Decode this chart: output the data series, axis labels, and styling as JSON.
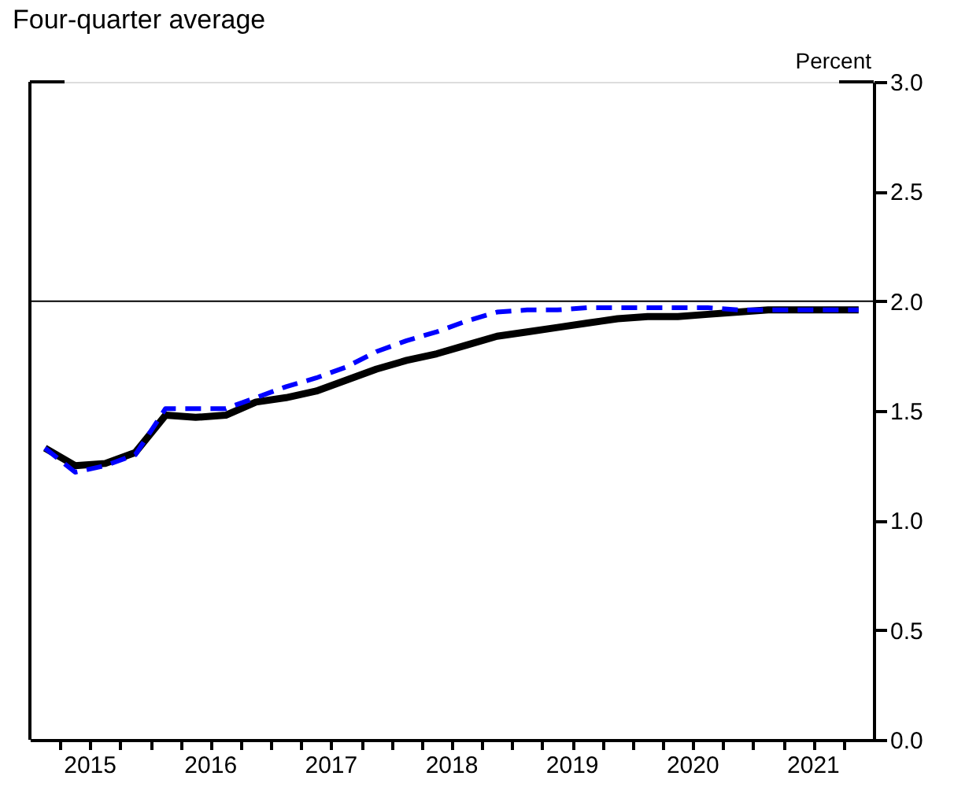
{
  "chart_data": {
    "type": "line",
    "subtitle": "Four-quarter average",
    "ylabel": "Percent",
    "x": [
      2015.125,
      2015.375,
      2015.625,
      2015.875,
      2016.125,
      2016.375,
      2016.625,
      2016.875,
      2017.125,
      2017.375,
      2017.625,
      2017.875,
      2018.125,
      2018.375,
      2018.625,
      2018.875,
      2019.125,
      2019.375,
      2019.625,
      2019.875,
      2020.125,
      2020.375,
      2020.625,
      2020.875,
      2021.125,
      2021.375,
      2021.625,
      2021.875
    ],
    "series": [
      {
        "color": "#000000",
        "line_style": "solid",
        "values": [
          1.33,
          1.25,
          1.26,
          1.31,
          1.48,
          1.47,
          1.48,
          1.54,
          1.56,
          1.59,
          1.64,
          1.69,
          1.73,
          1.76,
          1.8,
          1.84,
          1.86,
          1.88,
          1.9,
          1.92,
          1.93,
          1.93,
          1.94,
          1.95,
          1.96,
          1.96,
          1.96,
          1.96
        ]
      },
      {
        "color": "#0000ff",
        "line_style": "dashed",
        "values": [
          1.33,
          1.22,
          1.25,
          1.3,
          1.51,
          1.51,
          1.51,
          1.56,
          1.61,
          1.65,
          1.7,
          1.77,
          1.82,
          1.86,
          1.91,
          1.95,
          1.96,
          1.96,
          1.97,
          1.97,
          1.97,
          1.97,
          1.97,
          1.96,
          1.96,
          1.96,
          1.96,
          1.96
        ]
      }
    ],
    "xlim": [
      2015,
      2022
    ],
    "xticks": [
      {
        "value": 2015.25,
        "label": null
      },
      {
        "value": 2015.5,
        "label": "2015"
      },
      {
        "value": 2015.75,
        "label": null
      },
      {
        "value": 2016,
        "label": null
      },
      {
        "value": 2016.25,
        "label": null
      },
      {
        "value": 2016.5,
        "label": "2016"
      },
      {
        "value": 2016.75,
        "label": null
      },
      {
        "value": 2017,
        "label": null
      },
      {
        "value": 2017.25,
        "label": null
      },
      {
        "value": 2017.5,
        "label": "2017"
      },
      {
        "value": 2017.75,
        "label": null
      },
      {
        "value": 2018,
        "label": null
      },
      {
        "value": 2018.25,
        "label": null
      },
      {
        "value": 2018.5,
        "label": "2018"
      },
      {
        "value": 2018.75,
        "label": null
      },
      {
        "value": 2019,
        "label": null
      },
      {
        "value": 2019.25,
        "label": null
      },
      {
        "value": 2019.5,
        "label": "2019"
      },
      {
        "value": 2019.75,
        "label": null
      },
      {
        "value": 2020,
        "label": null
      },
      {
        "value": 2020.25,
        "label": null
      },
      {
        "value": 2020.5,
        "label": "2020"
      },
      {
        "value": 2020.75,
        "label": null
      },
      {
        "value": 2021,
        "label": null
      },
      {
        "value": 2021.25,
        "label": null
      },
      {
        "value": 2021.5,
        "label": "2021"
      },
      {
        "value": 2021.75,
        "label": null
      }
    ],
    "ylim": [
      0,
      3
    ],
    "yticks": [
      {
        "value": 0,
        "label": "0.0"
      },
      {
        "value": 0.5,
        "label": "0.5"
      },
      {
        "value": 1,
        "label": "1.0"
      },
      {
        "value": 1.5,
        "label": "1.5"
      },
      {
        "value": 2,
        "label": "2.0"
      },
      {
        "value": 2.5,
        "label": "2.5"
      },
      {
        "value": 3,
        "label": "3.0"
      }
    ],
    "ref_lines": [
      {
        "axis": "y",
        "value": 2.0,
        "color": "#000000"
      }
    ],
    "grid": false,
    "legend": false,
    "marker": "none"
  }
}
